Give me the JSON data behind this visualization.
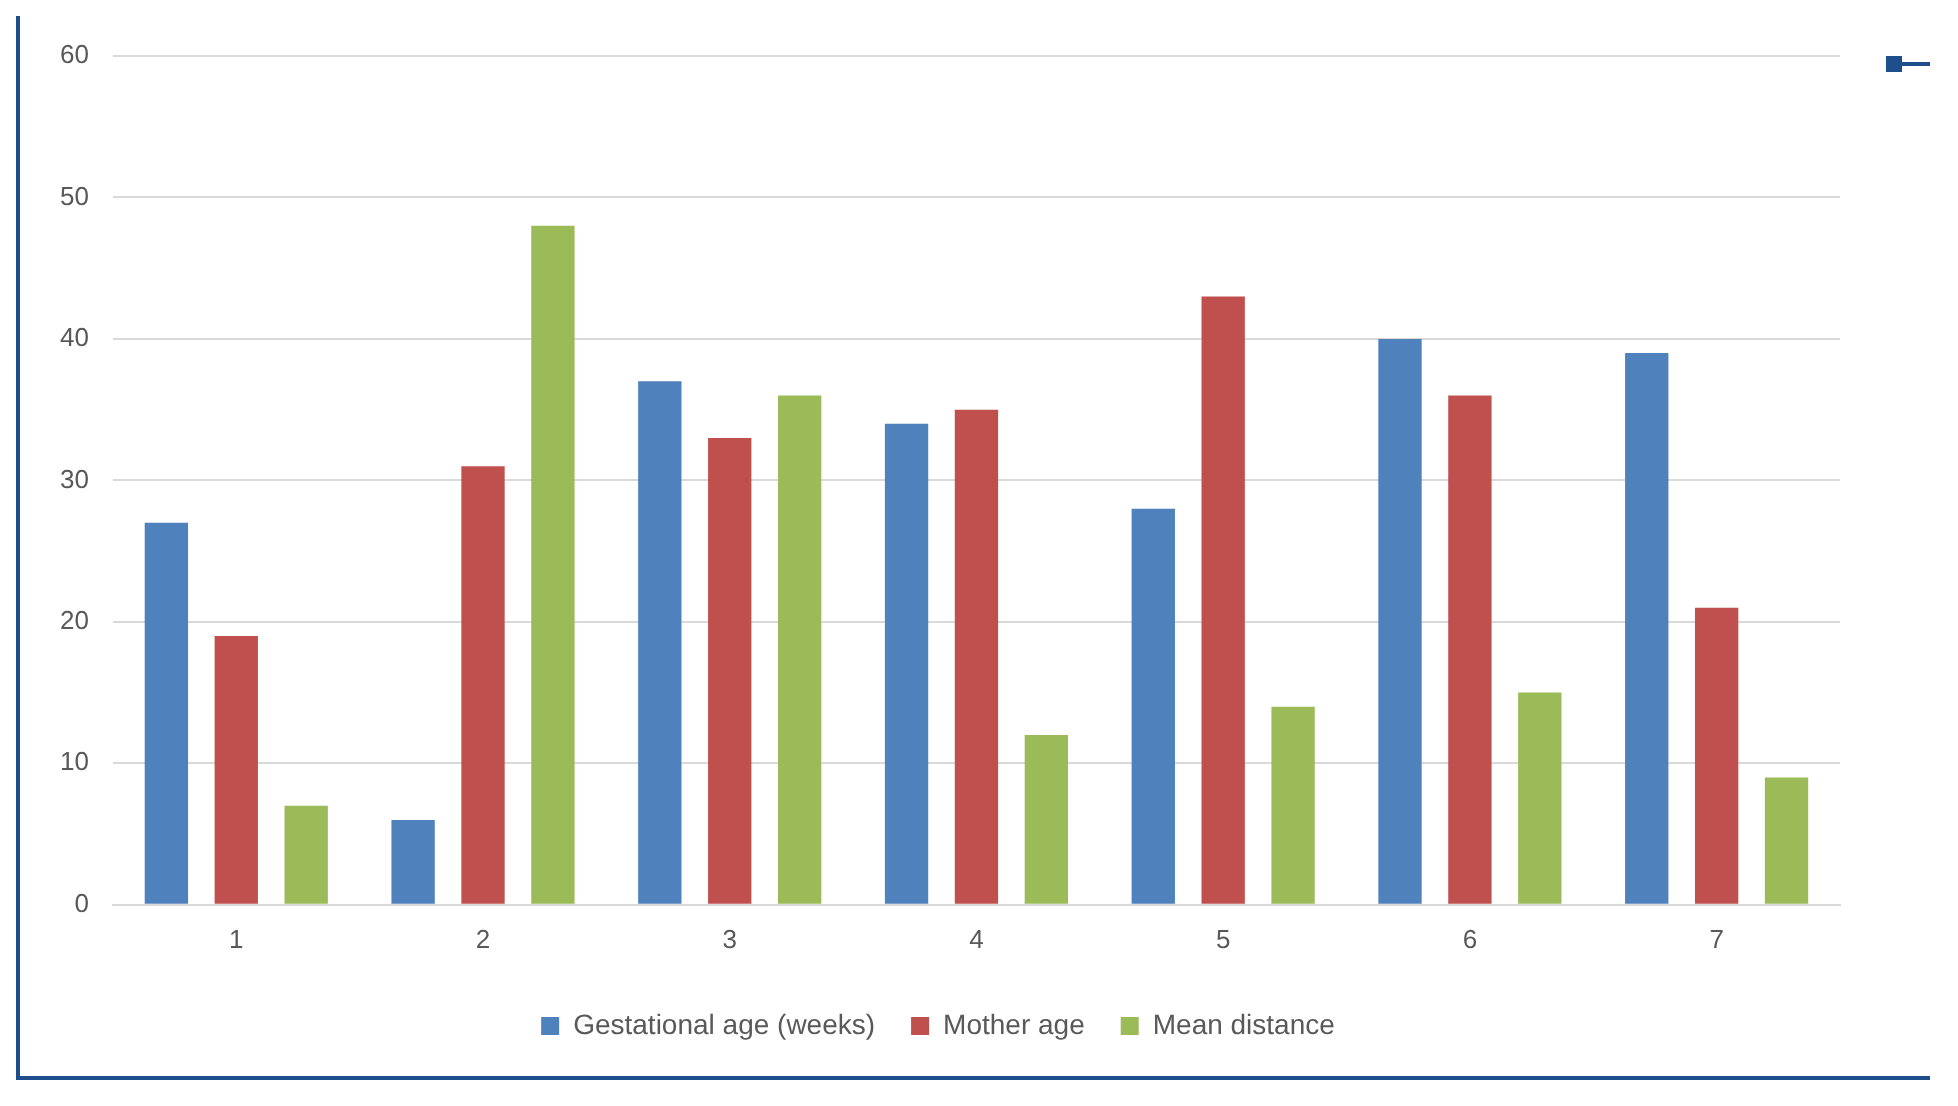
{
  "chart_data": {
    "type": "bar",
    "categories": [
      "1",
      "2",
      "3",
      "4",
      "5",
      "6",
      "7"
    ],
    "series": [
      {
        "name": "Gestational age (weeks)",
        "color": "#4f81bd",
        "values": [
          27,
          6,
          37,
          34,
          28,
          40,
          39
        ]
      },
      {
        "name": "Mother age",
        "color": "#c0504d",
        "values": [
          19,
          31,
          33,
          35,
          43,
          36,
          21
        ]
      },
      {
        "name": "Mean distance",
        "color": "#9bbb59",
        "values": [
          7,
          48,
          36,
          12,
          14,
          15,
          9
        ]
      }
    ],
    "ylim": [
      0,
      60
    ],
    "yticks": [
      0,
      10,
      20,
      30,
      40,
      50,
      60
    ],
    "grid": "y",
    "legend": "bottom"
  }
}
